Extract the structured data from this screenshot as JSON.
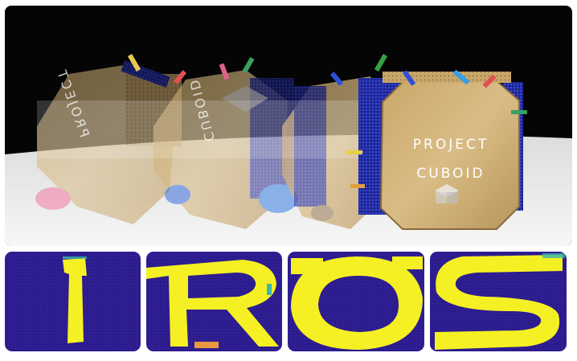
{
  "photo": {
    "title_line1": "PROJECT",
    "title_line2": "CUBOID",
    "ghost_line1": "PROJECT",
    "ghost_line2": "CUBOID"
  },
  "colors": {
    "grid_blue": "#2b1a8c",
    "grid_line": "#3a2fa8",
    "letter_yellow": "#f5f023",
    "teal_edge": "#3cb8a8",
    "panel_gold": "#d2b27a",
    "panel_edge": "#8a6a3a",
    "pin_blue": "#2d37b8",
    "background": "#050505",
    "table": "#f2f2f2"
  },
  "letters": [
    {
      "glyph": "I"
    },
    {
      "glyph": "R"
    },
    {
      "glyph": "O"
    },
    {
      "glyph": "S"
    }
  ]
}
